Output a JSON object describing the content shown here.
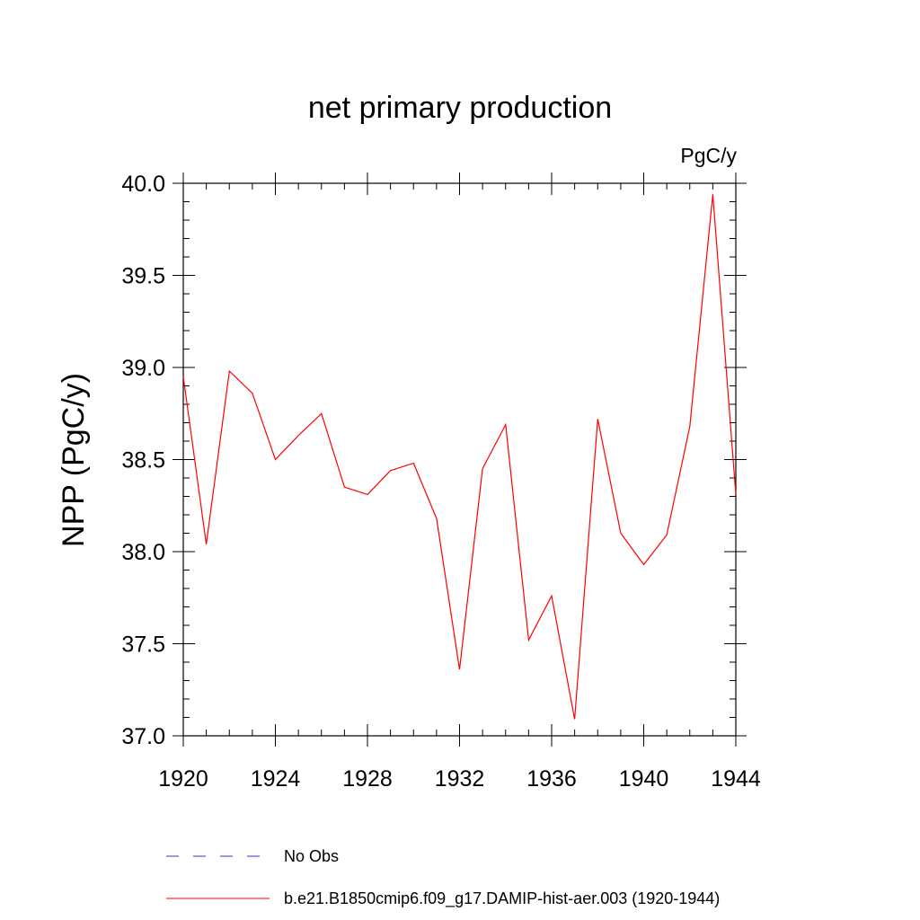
{
  "chart_data": {
    "type": "line",
    "title": "net primary production",
    "units_label": "PgC/y",
    "ylabel": "NPP  (PgC/y)",
    "xlabel": "",
    "xlim": [
      1920,
      1944
    ],
    "ylim": [
      37.0,
      40.0
    ],
    "x_ticks": [
      "1920",
      "1924",
      "1928",
      "1932",
      "1936",
      "1940",
      "1944"
    ],
    "y_ticks": [
      "37.0",
      "37.5",
      "38.0",
      "38.5",
      "39.0",
      "39.5",
      "40.0"
    ],
    "grid": false,
    "legend_position": "bottom",
    "series": [
      {
        "name": "b.e21.B1850cmip6.f09_g17.DAMIP-hist-aer.003 (1920-1944)",
        "color": "#ff0000",
        "style": "solid",
        "x": [
          1920,
          1921,
          1922,
          1923,
          1924,
          1925,
          1926,
          1927,
          1928,
          1929,
          1930,
          1931,
          1932,
          1933,
          1934,
          1935,
          1936,
          1937,
          1938,
          1939,
          1940,
          1941,
          1942,
          1943,
          1944
        ],
        "values": [
          38.95,
          38.04,
          38.98,
          38.86,
          38.5,
          38.63,
          38.75,
          38.35,
          38.31,
          38.44,
          38.48,
          38.18,
          37.36,
          38.45,
          38.69,
          37.52,
          37.76,
          37.09,
          38.72,
          38.1,
          37.93,
          38.09,
          38.68,
          39.94,
          38.31
        ]
      }
    ],
    "legend": [
      {
        "label": "No Obs",
        "color": "#3333cc",
        "style": "dashed"
      },
      {
        "label": "b.e21.B1850cmip6.f09_g17.DAMIP-hist-aer.003 (1920-1944)",
        "color": "#ff0000",
        "style": "solid"
      }
    ]
  }
}
